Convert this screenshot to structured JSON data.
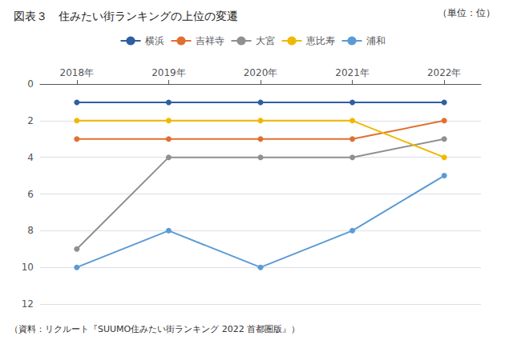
{
  "chart_data": {
    "type": "line",
    "title": "図表３　住みたい街ランキングの上位の変遷",
    "ylabel": "（単位：位）",
    "annotations": [
      "（資料：リクルート『SUUMO住みたい街ランキング 2022 首都圏版』）"
    ],
    "x": [
      2018,
      2019,
      2020,
      2021,
      2022
    ],
    "xlim": [
      2017.6,
      2022.4
    ],
    "xticks": [
      {
        "value": 2018,
        "label": "2018年"
      },
      {
        "value": 2019,
        "label": "2019年"
      },
      {
        "value": 2020,
        "label": "2020年"
      },
      {
        "value": 2021,
        "label": "2021年"
      },
      {
        "value": 2022,
        "label": "2022年"
      }
    ],
    "ylim": [
      12,
      0
    ],
    "yticks": [
      0,
      2,
      4,
      6,
      8,
      10,
      12
    ],
    "grid": true,
    "legend": "top",
    "series": [
      {
        "name": "横浜",
        "color": "#2e5fa3",
        "marker": "circle",
        "values": [
          1,
          1,
          1,
          1,
          1
        ]
      },
      {
        "name": "吉祥寺",
        "color": "#e07030",
        "marker": "circle",
        "values": [
          3,
          3,
          3,
          3,
          2
        ]
      },
      {
        "name": "大宮",
        "color": "#909090",
        "marker": "circle",
        "values": [
          9,
          4,
          4,
          4,
          3
        ]
      },
      {
        "name": "恵比寿",
        "color": "#f0b800",
        "marker": "circle",
        "values": [
          2,
          2,
          2,
          2,
          4
        ]
      },
      {
        "name": "浦和",
        "color": "#5b9bd5",
        "marker": "circle",
        "values": [
          10,
          8,
          10,
          8,
          5
        ]
      }
    ]
  }
}
